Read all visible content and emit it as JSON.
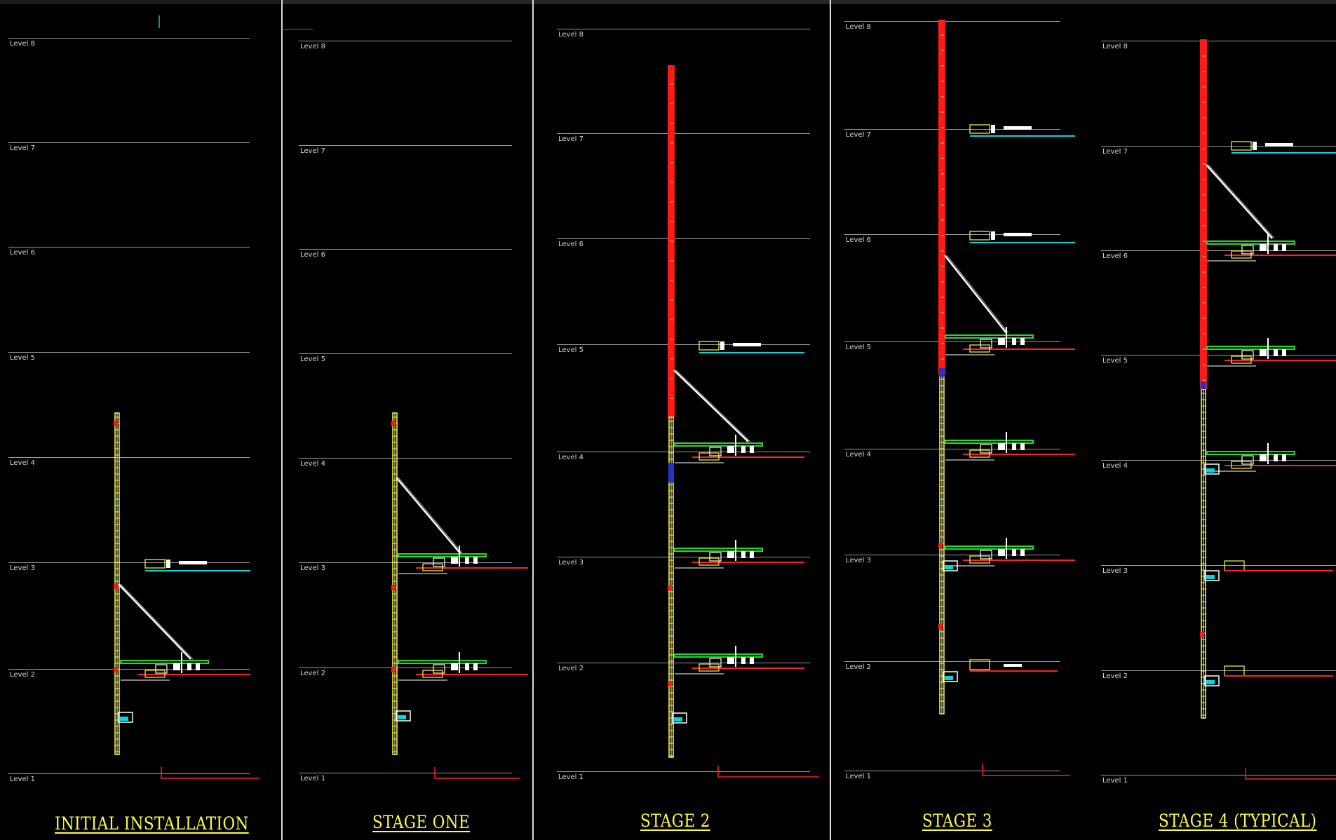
{
  "panels": [
    {
      "id": "initial",
      "title": "INITIAL  INSTALLATION",
      "levels": [
        "Level 8",
        "Level 7",
        "Level 6",
        "Level 5",
        "Level 4",
        "Level 3",
        "Level 2",
        "Level 1"
      ]
    },
    {
      "id": "stage-one",
      "title": "STAGE  ONE",
      "levels": [
        "Level 8",
        "Level 7",
        "Level 6",
        "Level 5",
        "Level 4",
        "Level 3",
        "Level 2",
        "Level 1"
      ]
    },
    {
      "id": "stage-2",
      "title": "STAGE  2",
      "levels": [
        "Level 8",
        "Level 7",
        "Level 6",
        "Level 5",
        "Level 4",
        "Level 3",
        "Level 2",
        "Level 1"
      ]
    },
    {
      "id": "stage-3",
      "title": "STAGE  3",
      "levels": [
        "Level 8",
        "Level 7",
        "Level 6",
        "Level 5",
        "Level 4",
        "Level 3",
        "Level 2",
        "Level 1"
      ]
    },
    {
      "id": "stage-4",
      "title": "STAGE  4  (TYPICAL)",
      "levels": [
        "Level 8",
        "Level 7",
        "Level 6",
        "Level 5",
        "Level 4",
        "Level 3",
        "Level 2",
        "Level 1"
      ]
    }
  ],
  "colors": {
    "background": "#000000",
    "level_line": "#9a9a9a",
    "mast_yellow": "#ffff33",
    "mast_red": "#ff1a1a",
    "platform_green": "#22dd22",
    "cyan": "#00d8e0",
    "slab_red": "#ff2020",
    "title": "#ffff33"
  }
}
